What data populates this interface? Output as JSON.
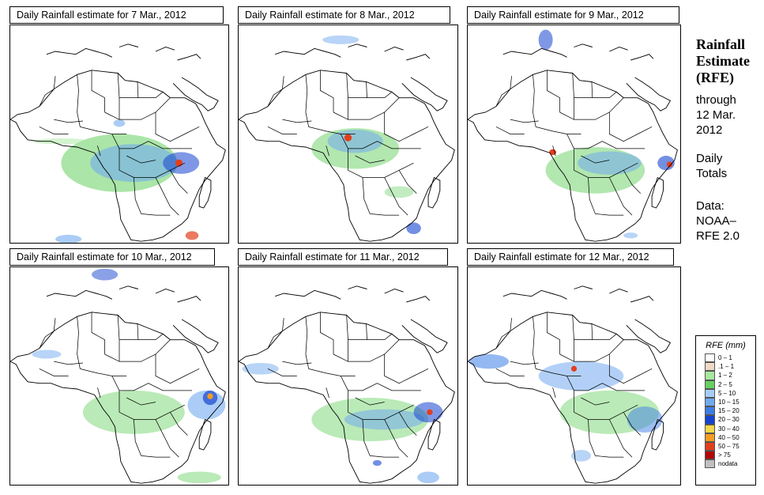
{
  "panels": [
    {
      "title": "Daily Rainfall estimate for  7 Mar., 2012"
    },
    {
      "title": "Daily Rainfall estimate for  8 Mar., 2012"
    },
    {
      "title": "Daily Rainfall estimate for  9 Mar., 2012"
    },
    {
      "title": "Daily Rainfall estimate for  10 Mar., 2012"
    },
    {
      "title": "Daily Rainfall estimate for  11 Mar., 2012"
    },
    {
      "title": "Daily Rainfall estimate for  12 Mar., 2012"
    }
  ],
  "sidebar": {
    "heading_line1": "Rainfall",
    "heading_line2": "Estimate",
    "heading_line3": "(RFE)",
    "through_label": "through",
    "date_line1": "12 Mar.",
    "date_line2": "2012",
    "totals_line1": "Daily",
    "totals_line2": "Totals",
    "source_label": "Data:",
    "source_line1": "NOAA–",
    "source_line2": "RFE 2.0"
  },
  "legend": {
    "title": "RFE (mm)",
    "items": [
      {
        "label": "0 – 1",
        "color": "#ffffff"
      },
      {
        "label": ".1 – 1",
        "color": "#eed9c4"
      },
      {
        "label": "1 – 2",
        "color": "#a8e8a0"
      },
      {
        "label": "2 – 5",
        "color": "#66d060"
      },
      {
        "label": "5 – 10",
        "color": "#a6cdfa"
      },
      {
        "label": "10 – 15",
        "color": "#72aaf0"
      },
      {
        "label": "15 – 20",
        "color": "#3d7de6"
      },
      {
        "label": "20 – 30",
        "color": "#1544d0"
      },
      {
        "label": "30 – 40",
        "color": "#f6d84a"
      },
      {
        "label": "40 – 50",
        "color": "#f59c22"
      },
      {
        "label": "50 – 75",
        "color": "#e2401c"
      },
      {
        "label": "> 75",
        "color": "#b00808"
      },
      {
        "label": "nodata",
        "color": "#c0c0c0"
      }
    ]
  }
}
